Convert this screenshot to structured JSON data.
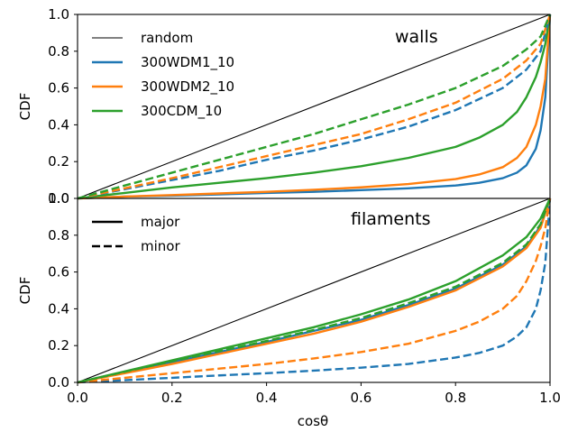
{
  "chart_data": [
    {
      "type": "line",
      "title": "walls",
      "xlabel": "cosθ",
      "ylabel": "CDF",
      "xlim": [
        0,
        1
      ],
      "ylim": [
        0,
        1
      ],
      "xticks": [
        "0.0",
        "0.2",
        "0.4",
        "0.6",
        "0.8",
        "1.0"
      ],
      "yticks": [
        "0.0",
        "0.2",
        "0.4",
        "0.6",
        "0.8",
        "1.0"
      ],
      "legend_position": "top-left",
      "legend_entries": [
        {
          "label": "random",
          "color": "#000000",
          "style": "solid-thin"
        },
        {
          "label": "300WDM1_10",
          "color": "#1f77b4",
          "style": "solid"
        },
        {
          "label": "300WDM2_10",
          "color": "#ff7f0e",
          "style": "solid"
        },
        {
          "label": "300CDM_10",
          "color": "#2ca02c",
          "style": "solid"
        }
      ],
      "series": [
        {
          "name": "random",
          "color": "#000000",
          "dash": "solid",
          "thin": true,
          "x": [
            0,
            1
          ],
          "y": [
            0,
            1
          ]
        },
        {
          "name": "300WDM1_10",
          "color": "#1f77b4",
          "dash": "solid",
          "x": [
            0,
            0.1,
            0.2,
            0.3,
            0.4,
            0.5,
            0.6,
            0.7,
            0.8,
            0.85,
            0.9,
            0.93,
            0.95,
            0.97,
            0.98,
            0.99,
            1.0
          ],
          "y": [
            0,
            0.01,
            0.015,
            0.022,
            0.03,
            0.036,
            0.045,
            0.055,
            0.07,
            0.085,
            0.11,
            0.14,
            0.18,
            0.27,
            0.37,
            0.55,
            1.0
          ]
        },
        {
          "name": "300WDM2_10",
          "color": "#ff7f0e",
          "dash": "solid",
          "x": [
            0,
            0.1,
            0.2,
            0.3,
            0.4,
            0.5,
            0.6,
            0.7,
            0.8,
            0.85,
            0.9,
            0.93,
            0.95,
            0.97,
            0.98,
            0.99,
            1.0
          ],
          "y": [
            0,
            0.01,
            0.018,
            0.027,
            0.036,
            0.047,
            0.06,
            0.078,
            0.105,
            0.13,
            0.17,
            0.22,
            0.28,
            0.4,
            0.5,
            0.65,
            1.0
          ]
        },
        {
          "name": "300CDM_10",
          "color": "#2ca02c",
          "dash": "solid",
          "x": [
            0,
            0.1,
            0.2,
            0.3,
            0.4,
            0.5,
            0.6,
            0.7,
            0.8,
            0.85,
            0.9,
            0.93,
            0.95,
            0.97,
            0.98,
            0.99,
            1.0
          ],
          "y": [
            0,
            0.03,
            0.06,
            0.085,
            0.11,
            0.14,
            0.175,
            0.22,
            0.28,
            0.33,
            0.4,
            0.47,
            0.55,
            0.66,
            0.74,
            0.84,
            1.0
          ]
        },
        {
          "name": "300WDM1_10 minor",
          "color": "#1f77b4",
          "dash": "dashed",
          "x": [
            0,
            0.1,
            0.2,
            0.3,
            0.4,
            0.5,
            0.6,
            0.7,
            0.8,
            0.9,
            0.95,
            0.98,
            1.0
          ],
          "y": [
            0,
            0.05,
            0.1,
            0.15,
            0.21,
            0.26,
            0.32,
            0.39,
            0.48,
            0.6,
            0.7,
            0.8,
            1.0
          ]
        },
        {
          "name": "300WDM2_10 minor",
          "color": "#ff7f0e",
          "dash": "dashed",
          "x": [
            0,
            0.1,
            0.2,
            0.3,
            0.4,
            0.5,
            0.6,
            0.7,
            0.8,
            0.9,
            0.95,
            0.98,
            1.0
          ],
          "y": [
            0,
            0.055,
            0.11,
            0.17,
            0.23,
            0.29,
            0.35,
            0.43,
            0.52,
            0.65,
            0.75,
            0.84,
            1.0
          ]
        },
        {
          "name": "300CDM_10 minor",
          "color": "#2ca02c",
          "dash": "dashed",
          "x": [
            0,
            0.1,
            0.2,
            0.3,
            0.4,
            0.5,
            0.6,
            0.7,
            0.8,
            0.9,
            0.95,
            0.98,
            1.0
          ],
          "y": [
            0,
            0.07,
            0.14,
            0.21,
            0.28,
            0.35,
            0.43,
            0.51,
            0.6,
            0.72,
            0.81,
            0.88,
            1.0
          ]
        }
      ]
    },
    {
      "type": "line",
      "title": "filaments",
      "xlabel": "cosθ",
      "ylabel": "CDF",
      "xlim": [
        0,
        1
      ],
      "ylim": [
        0,
        1
      ],
      "xticks": [
        "0.0",
        "0.2",
        "0.4",
        "0.6",
        "0.8",
        "1.0"
      ],
      "yticks": [
        "0.0",
        "0.2",
        "0.4",
        "0.6",
        "0.8",
        "1.0"
      ],
      "legend_position": "top-left",
      "legend_entries": [
        {
          "label": "major",
          "color": "#000000",
          "style": "solid"
        },
        {
          "label": "minor",
          "color": "#000000",
          "style": "dashed"
        }
      ],
      "series": [
        {
          "name": "random",
          "color": "#000000",
          "dash": "solid",
          "thin": true,
          "x": [
            0,
            1
          ],
          "y": [
            0,
            1
          ]
        },
        {
          "name": "300WDM1_10 major",
          "color": "#1f77b4",
          "dash": "solid",
          "x": [
            0,
            0.1,
            0.2,
            0.3,
            0.4,
            0.5,
            0.6,
            0.7,
            0.8,
            0.9,
            0.95,
            0.98,
            1.0
          ],
          "y": [
            0,
            0.055,
            0.11,
            0.165,
            0.22,
            0.28,
            0.34,
            0.42,
            0.51,
            0.64,
            0.74,
            0.85,
            1.0
          ]
        },
        {
          "name": "300WDM2_10 major",
          "color": "#ff7f0e",
          "dash": "solid",
          "x": [
            0,
            0.1,
            0.2,
            0.3,
            0.4,
            0.5,
            0.6,
            0.7,
            0.8,
            0.9,
            0.95,
            0.98,
            1.0
          ],
          "y": [
            0,
            0.05,
            0.1,
            0.155,
            0.21,
            0.265,
            0.33,
            0.41,
            0.5,
            0.63,
            0.73,
            0.84,
            1.0
          ]
        },
        {
          "name": "300CDM_10 major",
          "color": "#2ca02c",
          "dash": "solid",
          "x": [
            0,
            0.1,
            0.2,
            0.3,
            0.4,
            0.5,
            0.6,
            0.7,
            0.8,
            0.9,
            0.95,
            0.98,
            1.0
          ],
          "y": [
            0,
            0.06,
            0.12,
            0.18,
            0.24,
            0.3,
            0.37,
            0.45,
            0.55,
            0.69,
            0.79,
            0.89,
            1.0
          ]
        },
        {
          "name": "300WDM1_10 minor",
          "color": "#1f77b4",
          "dash": "dashed",
          "x": [
            0,
            0.1,
            0.2,
            0.3,
            0.4,
            0.5,
            0.6,
            0.7,
            0.8,
            0.85,
            0.9,
            0.93,
            0.95,
            0.97,
            0.98,
            0.99,
            1.0
          ],
          "y": [
            0,
            0.012,
            0.025,
            0.038,
            0.05,
            0.064,
            0.08,
            0.1,
            0.135,
            0.16,
            0.2,
            0.25,
            0.3,
            0.4,
            0.5,
            0.65,
            1.0
          ]
        },
        {
          "name": "300WDM2_10 minor",
          "color": "#ff7f0e",
          "dash": "dashed",
          "x": [
            0,
            0.1,
            0.2,
            0.3,
            0.4,
            0.5,
            0.6,
            0.7,
            0.8,
            0.85,
            0.9,
            0.93,
            0.95,
            0.97,
            0.98,
            0.99,
            1.0
          ],
          "y": [
            0,
            0.025,
            0.05,
            0.075,
            0.1,
            0.13,
            0.165,
            0.21,
            0.28,
            0.33,
            0.4,
            0.47,
            0.55,
            0.66,
            0.74,
            0.84,
            1.0
          ]
        },
        {
          "name": "300CDM_10 minor",
          "color": "#2ca02c",
          "dash": "dashed",
          "x": [
            0,
            0.1,
            0.2,
            0.3,
            0.4,
            0.5,
            0.6,
            0.7,
            0.8,
            0.9,
            0.95,
            0.98,
            1.0
          ],
          "y": [
            0,
            0.058,
            0.115,
            0.17,
            0.225,
            0.285,
            0.35,
            0.43,
            0.52,
            0.65,
            0.75,
            0.86,
            1.0
          ]
        }
      ]
    }
  ]
}
